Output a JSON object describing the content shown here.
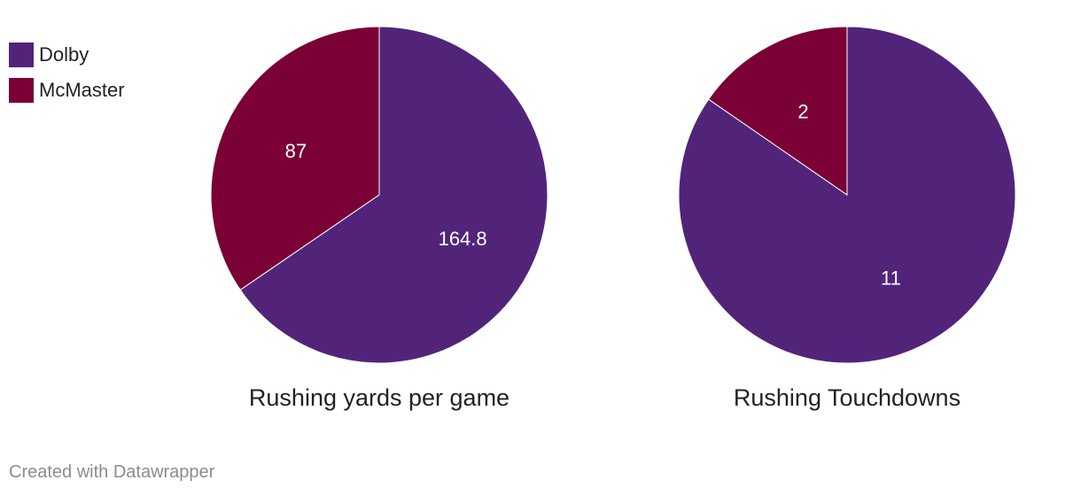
{
  "colors": {
    "Dolby": "#51247a",
    "McMaster": "#7a0036"
  },
  "legend": [
    {
      "label": "Dolby",
      "color": "#51247a"
    },
    {
      "label": "McMaster",
      "color": "#7a0036"
    }
  ],
  "chart_data": [
    {
      "type": "pie",
      "title": "Rushing yards per game",
      "slices": [
        {
          "label": "Dolby",
          "value": 164.8
        },
        {
          "label": "McMaster",
          "value": 87
        }
      ]
    },
    {
      "type": "pie",
      "title": "Rushing Touchdowns",
      "slices": [
        {
          "label": "Dolby",
          "value": 11
        },
        {
          "label": "McMaster",
          "value": 2
        }
      ]
    }
  ],
  "footer": {
    "credit": "Created with Datawrapper"
  }
}
